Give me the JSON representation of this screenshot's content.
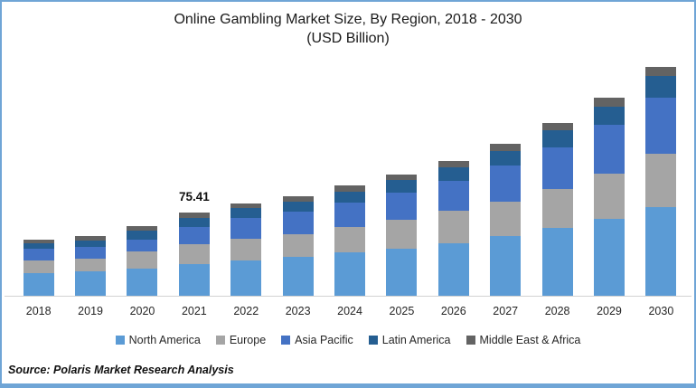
{
  "chart_data": {
    "type": "bar",
    "stacked": true,
    "title": "Online Gambling Market Size, By Region, 2018 - 2030",
    "subtitle": "(USD Billion)",
    "unit": "USD Billion",
    "categories": [
      "2018",
      "2019",
      "2020",
      "2021",
      "2022",
      "2023",
      "2024",
      "2025",
      "2026",
      "2027",
      "2028",
      "2029",
      "2030"
    ],
    "series": [
      {
        "name": "North America",
        "color": "#5B9BD5",
        "values": [
          20.4,
          21.8,
          24.5,
          28.6,
          32.2,
          35.4,
          38.9,
          42.2,
          47.1,
          53.9,
          61.2,
          69.4,
          80.3
        ]
      },
      {
        "name": "Europe",
        "color": "#A5A5A5",
        "values": [
          11.4,
          11.5,
          15.3,
          17.7,
          19.6,
          20.4,
          22.9,
          26.4,
          29.6,
          31.3,
          35.4,
          40.8,
          47.6
        ]
      },
      {
        "name": "Asia Pacific",
        "color": "#4472C4",
        "values": [
          10.4,
          10.9,
          10.8,
          15.5,
          18.2,
          20.4,
          22.6,
          24.8,
          26.7,
          32.6,
          37.5,
          43.6,
          50.4
        ]
      },
      {
        "name": "Latin America",
        "color": "#255E91",
        "values": [
          4.9,
          5.4,
          8.0,
          8.2,
          9.0,
          8.7,
          9.5,
          11.4,
          12.2,
          12.7,
          15.5,
          16.3,
          19.6
        ]
      },
      {
        "name": "Middle East & Africa",
        "color": "#636363",
        "values": [
          3.3,
          4.0,
          4.0,
          5.41,
          4.1,
          4.9,
          5.5,
          4.6,
          6.3,
          6.3,
          6.2,
          8.2,
          8.4
        ]
      }
    ],
    "annotations": [
      {
        "category": "2021",
        "label": "75.41"
      }
    ],
    "totals": {
      "2021": 75.41
    },
    "legend_position": "bottom",
    "y_axis_visible": false,
    "gridlines": false,
    "ylim": [
      0,
      215
    ]
  },
  "source": {
    "text": "Source: Polaris  Market Research Analysis"
  },
  "frame": {
    "border_color": "#6FA5D6",
    "background": "#FFFFFF",
    "axis_line_color": "#D2D2D2"
  }
}
